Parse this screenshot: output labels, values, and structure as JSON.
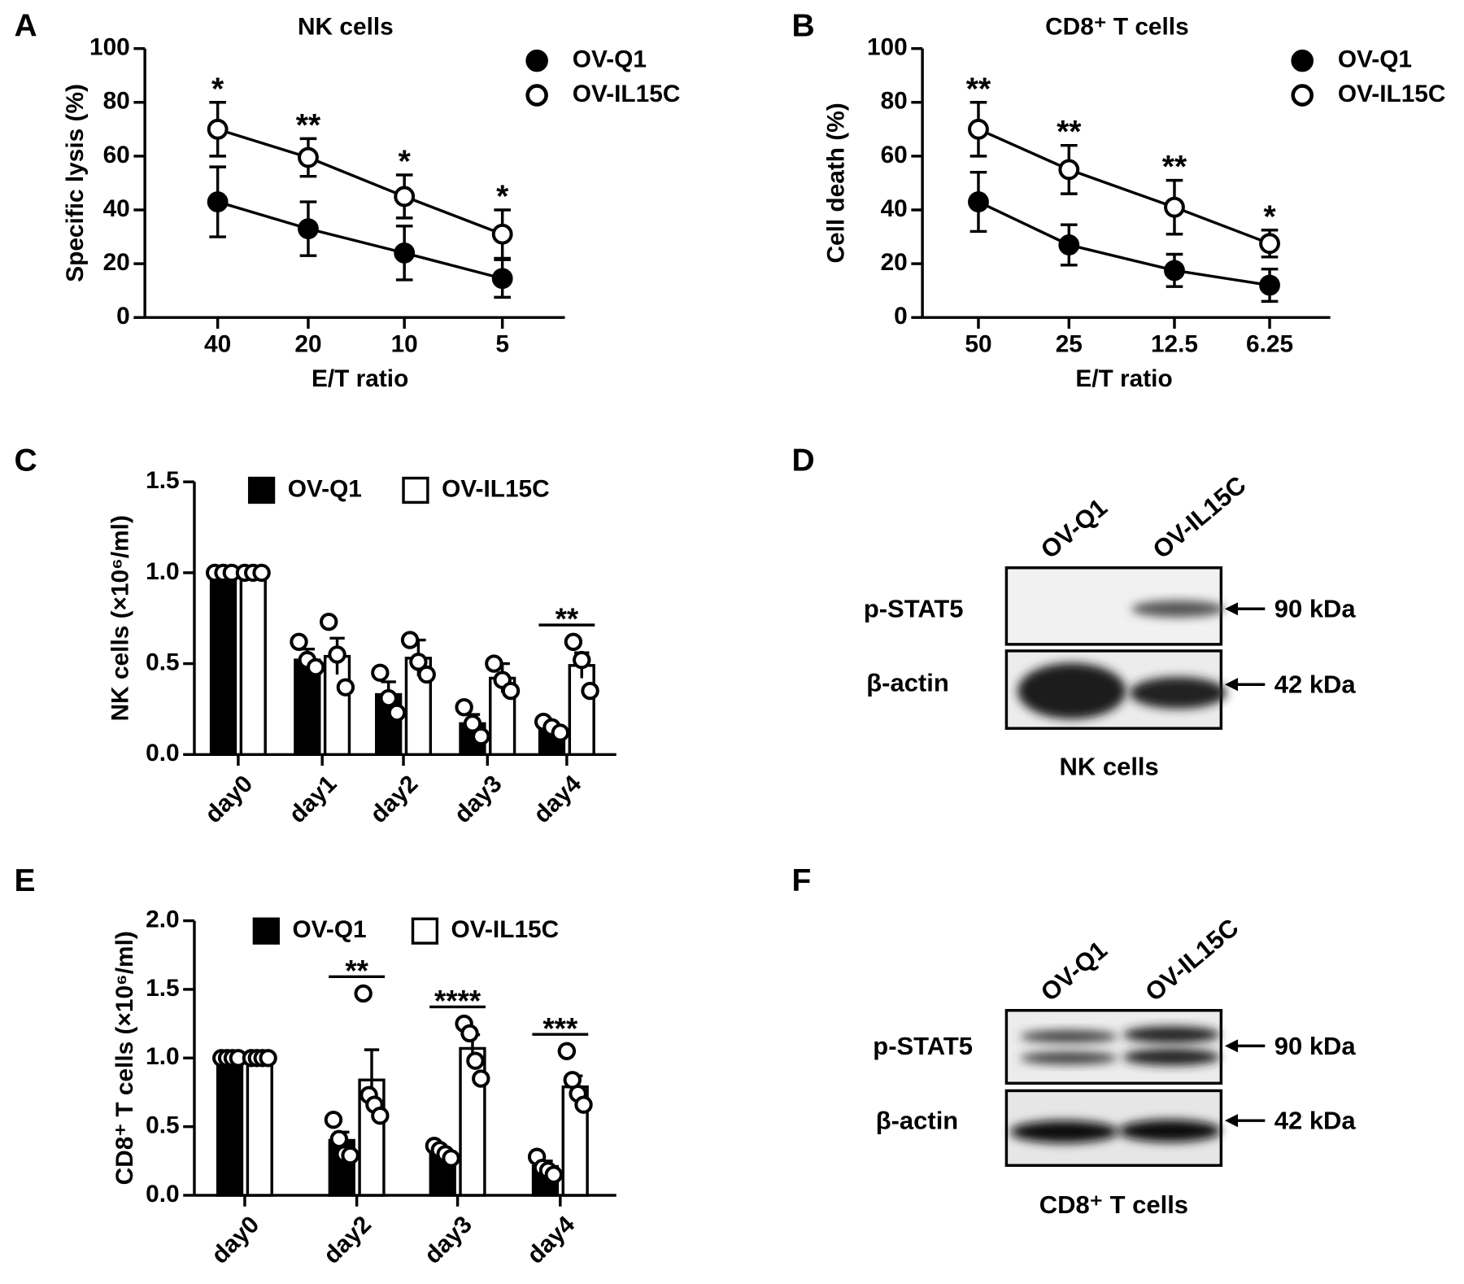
{
  "chart_data": [
    {
      "panel": "A",
      "type": "line",
      "title": "NK cells",
      "x_label": "E/T ratio",
      "y_label": "Specific lysis (%)",
      "categories": [
        "40",
        "20",
        "10",
        "5"
      ],
      "series": [
        {
          "name": "OV-Q1",
          "color": "#000000",
          "fill": "#000000",
          "values": [
            43,
            33,
            24,
            14.5
          ],
          "errors": [
            13,
            10,
            10,
            7
          ]
        },
        {
          "name": "OV-IL15C",
          "color": "#000000",
          "fill": "#ffffff",
          "values": [
            70,
            59.5,
            45,
            31
          ],
          "errors": [
            10,
            7,
            8,
            9
          ]
        }
      ],
      "annotations": [
        "*",
        "**",
        "*",
        "*"
      ],
      "ylim": [
        0,
        100
      ],
      "yticks": [
        0,
        20,
        40,
        60,
        80,
        100
      ],
      "legend": "upper right"
    },
    {
      "panel": "B",
      "type": "line",
      "title": "CD8⁺ T cells",
      "x_label": "E/T ratio",
      "y_label": "Cell death (%)",
      "categories": [
        "50",
        "25",
        "12.5",
        "6.25"
      ],
      "series": [
        {
          "name": "OV-Q1",
          "color": "#000000",
          "fill": "#000000",
          "values": [
            43,
            27,
            17.5,
            12
          ],
          "errors": [
            11,
            7.5,
            6,
            6
          ]
        },
        {
          "name": "OV-IL15C",
          "color": "#000000",
          "fill": "#ffffff",
          "values": [
            70,
            55,
            41,
            27.5
          ],
          "errors": [
            10,
            9,
            10,
            5
          ]
        }
      ],
      "annotations": [
        "**",
        "**",
        "**",
        "*"
      ],
      "ylim": [
        0,
        100
      ],
      "yticks": [
        0,
        20,
        40,
        60,
        80,
        100
      ],
      "legend": "upper right"
    },
    {
      "panel": "C",
      "type": "bar",
      "y_label": "NK cells (×10⁶/ml)",
      "categories": [
        "day0",
        "day1",
        "day2",
        "day3",
        "day4"
      ],
      "series": [
        {
          "name": "OV-Q1",
          "color": "#000000",
          "fill": "#000000",
          "values": [
            1.0,
            0.52,
            0.33,
            0.17,
            0.15
          ],
          "errors": [
            0,
            0.06,
            0.07,
            0.05,
            0.02
          ],
          "points": [
            [
              1,
              1,
              1
            ],
            [
              0.62,
              0.52,
              0.48
            ],
            [
              0.45,
              0.31,
              0.23
            ],
            [
              0.26,
              0.17,
              0.1
            ],
            [
              0.18,
              0.15,
              0.12
            ]
          ]
        },
        {
          "name": "OV-IL15C",
          "color": "#000000",
          "fill": "#ffffff",
          "values": [
            1.0,
            0.54,
            0.53,
            0.42,
            0.49
          ],
          "errors": [
            0,
            0.1,
            0.1,
            0.08,
            0.07
          ],
          "points": [
            [
              1,
              1,
              1
            ],
            [
              0.73,
              0.55,
              0.37
            ],
            [
              0.63,
              0.51,
              0.44
            ],
            [
              0.5,
              0.41,
              0.35
            ],
            [
              0.62,
              0.52,
              0.35
            ]
          ]
        }
      ],
      "annotations": [
        null,
        null,
        null,
        null,
        "**"
      ],
      "ylim": [
        0,
        1.5
      ],
      "yticks": [
        {
          "value": 0,
          "label": "0.0"
        },
        {
          "value": 0.5,
          "label": "0.5"
        },
        {
          "value": 1,
          "label": "1.0"
        },
        {
          "value": 1.5,
          "label": "1.5"
        }
      ],
      "legend": "upper left"
    },
    {
      "panel": "E",
      "type": "bar",
      "y_label": "CD8⁺ T cells (×10⁶/ml)",
      "categories": [
        "day0",
        "day2",
        "day3",
        "day4"
      ],
      "series": [
        {
          "name": "OV-Q1",
          "color": "#000000",
          "fill": "#000000",
          "values": [
            1.0,
            0.4,
            0.31,
            0.21
          ],
          "errors": [
            0,
            0.06,
            0.03,
            0.04
          ],
          "points": [
            [
              1,
              1,
              1,
              1
            ],
            [
              0.55,
              0.41,
              0.3,
              0.29
            ],
            [
              0.36,
              0.33,
              0.3,
              0.27
            ],
            [
              0.28,
              0.2,
              0.18,
              0.15
            ]
          ]
        },
        {
          "name": "OV-IL15C",
          "color": "#000000",
          "fill": "#ffffff",
          "values": [
            1.0,
            0.84,
            1.07,
            0.79
          ],
          "errors": [
            0,
            0.22,
            0.1,
            0.08
          ],
          "points": [
            [
              1,
              1,
              1,
              1
            ],
            [
              1.47,
              0.73,
              0.66,
              0.58
            ],
            [
              1.25,
              1.18,
              0.98,
              0.85
            ],
            [
              1.05,
              0.84,
              0.74,
              0.66
            ]
          ]
        }
      ],
      "annotations": [
        null,
        "**",
        "****",
        "***"
      ],
      "ylim": [
        0,
        2
      ],
      "yticks": [
        {
          "value": 0,
          "label": "0.0"
        },
        {
          "value": 0.5,
          "label": "0.5"
        },
        {
          "value": 1,
          "label": "1.0"
        },
        {
          "value": 1.5,
          "label": "1.5"
        },
        {
          "value": 2,
          "label": "2.0"
        }
      ],
      "legend": "upper left"
    }
  ],
  "blots": [
    {
      "panel": "D",
      "lanes": [
        "OV-Q1",
        "OV-IL15C"
      ],
      "rows": [
        {
          "label": "p-STAT5",
          "size": "90 kDa"
        },
        {
          "label": "β-actin",
          "size": "42 kDa"
        }
      ],
      "caption": "NK cells"
    },
    {
      "panel": "F",
      "lanes": [
        "OV-Q1",
        "OV-IL15C"
      ],
      "rows": [
        {
          "label": "p-STAT5",
          "size": "90 kDa"
        },
        {
          "label": "β-actin",
          "size": "42 kDa"
        }
      ],
      "caption": "CD8⁺ T cells"
    }
  ]
}
